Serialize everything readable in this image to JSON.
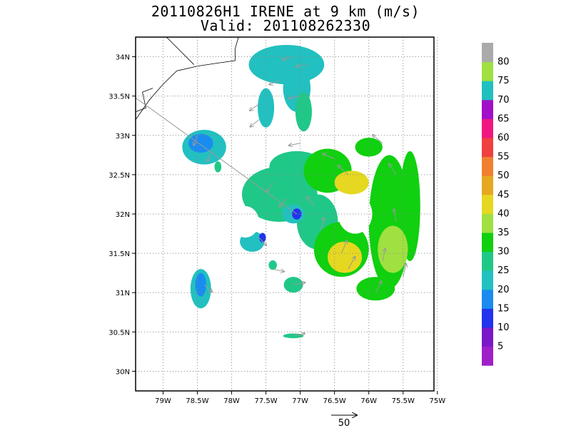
{
  "chart_data": {
    "type": "heatmap",
    "title": "20110826H1 IRENE at 9 km (m/s)",
    "subtitle": "Valid: 201108262330",
    "x_ticks": [
      "79W",
      "78.5W",
      "78W",
      "77.5W",
      "77W",
      "76.5W",
      "76W",
      "75.5W",
      "75W"
    ],
    "x_tick_values": [
      -79,
      -78.5,
      -78,
      -77.5,
      -77,
      -76.5,
      -76,
      -75.5,
      -75
    ],
    "y_ticks": [
      "30N",
      "30.5N",
      "31N",
      "31.5N",
      "32N",
      "32.5N",
      "33N",
      "33.5N",
      "34N"
    ],
    "y_tick_values": [
      30,
      30.5,
      31,
      31.5,
      32,
      32.5,
      33,
      33.5,
      34
    ],
    "xlim": [
      -79.4,
      -75.05
    ],
    "ylim": [
      29.75,
      34.25
    ],
    "grid": true,
    "grid_style": "dotted",
    "colorbar": {
      "labels": [
        "5",
        "10",
        "15",
        "20",
        "25",
        "30",
        "35",
        "40",
        "45",
        "50",
        "55",
        "60",
        "65",
        "70",
        "75",
        "80"
      ],
      "colors": [
        "#a020c8",
        "#7a18c8",
        "#2233ee",
        "#1a8cf0",
        "#22c0c0",
        "#20c888",
        "#10d010",
        "#a0e040",
        "#e6d820",
        "#e6a820",
        "#f08030",
        "#f04040",
        "#f01880",
        "#a010c8",
        "#20c0c0",
        "#a0e040",
        "#aaaaaa"
      ]
    },
    "reference_vector": {
      "label": "50",
      "speed": 50
    },
    "wind_field": [
      {
        "lon": -77.1,
        "lat": 34.0,
        "speed": 23
      },
      {
        "lon": -76.9,
        "lat": 33.9,
        "speed": 24
      },
      {
        "lon": -77.3,
        "lat": 33.7,
        "speed": 23
      },
      {
        "lon": -77.0,
        "lat": 33.5,
        "speed": 25
      },
      {
        "lon": -77.6,
        "lat": 33.4,
        "speed": 24
      },
      {
        "lon": -77.6,
        "lat": 33.2,
        "speed": 24
      },
      {
        "lon": -78.5,
        "lat": 33.0,
        "speed": 20
      },
      {
        "lon": -78.3,
        "lat": 32.8,
        "speed": 22
      },
      {
        "lon": -77.0,
        "lat": 32.9,
        "speed": 25
      },
      {
        "lon": -76.5,
        "lat": 32.7,
        "speed": 32
      },
      {
        "lon": -76.3,
        "lat": 32.5,
        "speed": 38
      },
      {
        "lon": -77.4,
        "lat": 32.4,
        "speed": 25
      },
      {
        "lon": -77.2,
        "lat": 32.2,
        "speed": 22
      },
      {
        "lon": -77.05,
        "lat": 32.0,
        "speed": 12
      },
      {
        "lon": -76.8,
        "lat": 32.1,
        "speed": 26
      },
      {
        "lon": -76.7,
        "lat": 31.8,
        "speed": 30
      },
      {
        "lon": -76.4,
        "lat": 31.5,
        "speed": 38
      },
      {
        "lon": -76.3,
        "lat": 31.3,
        "speed": 40
      },
      {
        "lon": -75.8,
        "lat": 32.9,
        "speed": 33
      },
      {
        "lon": -75.6,
        "lat": 32.5,
        "speed": 33
      },
      {
        "lon": -75.6,
        "lat": 31.9,
        "speed": 33
      },
      {
        "lon": -75.8,
        "lat": 31.4,
        "speed": 32
      },
      {
        "lon": -75.9,
        "lat": 31.0,
        "speed": 32
      },
      {
        "lon": -75.5,
        "lat": 31.2,
        "speed": 36
      },
      {
        "lon": -77.6,
        "lat": 31.7,
        "speed": 20
      },
      {
        "lon": -77.4,
        "lat": 31.3,
        "speed": 25
      },
      {
        "lon": -77.1,
        "lat": 31.1,
        "speed": 27
      },
      {
        "lon": -78.4,
        "lat": 31.1,
        "speed": 20
      },
      {
        "lon": -77.1,
        "lat": 30.45,
        "speed": 25
      }
    ]
  }
}
